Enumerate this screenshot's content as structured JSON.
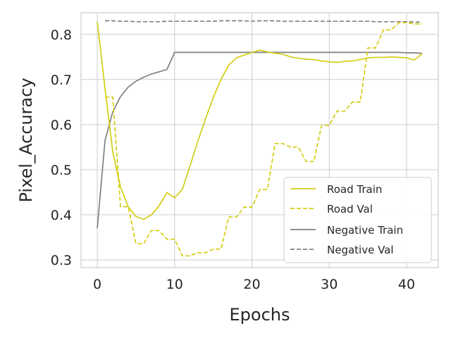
{
  "chart_data": {
    "type": "line",
    "xlabel": "Epochs",
    "ylabel": "Pixel_Accuracy",
    "xlim": [
      -2.1,
      44.1
    ],
    "ylim": [
      0.283,
      0.848
    ],
    "xticks": [
      0,
      10,
      20,
      30,
      40
    ],
    "yticks": [
      0.3,
      0.4,
      0.5,
      0.6,
      0.7,
      0.8
    ],
    "ytick_labels": [
      "0.3",
      "0.4",
      "0.5",
      "0.6",
      "0.7",
      "0.8"
    ],
    "grid": true,
    "legend_position": "lower-right",
    "series": [
      {
        "name": "Road Train",
        "color": "#d4cd14",
        "style": "solid",
        "x": [
          0,
          1,
          2,
          3,
          4,
          5,
          6,
          7,
          8,
          9,
          10,
          11,
          12,
          13,
          14,
          15,
          16,
          17,
          18,
          19,
          20,
          21,
          22,
          23,
          24,
          25,
          26,
          27,
          28,
          29,
          30,
          31,
          32,
          33,
          34,
          35,
          36,
          37,
          38,
          39,
          40,
          41,
          42
        ],
        "y": [
          0.828,
          0.68,
          0.54,
          0.462,
          0.418,
          0.396,
          0.39,
          0.4,
          0.42,
          0.449,
          0.438,
          0.456,
          0.509,
          0.563,
          0.613,
          0.66,
          0.7,
          0.732,
          0.748,
          0.754,
          0.76,
          0.765,
          0.761,
          0.758,
          0.756,
          0.75,
          0.747,
          0.745,
          0.744,
          0.741,
          0.739,
          0.738,
          0.74,
          0.741,
          0.744,
          0.748,
          0.749,
          0.749,
          0.75,
          0.749,
          0.748,
          0.743,
          0.757
        ]
      },
      {
        "name": "Road Val",
        "color": "#d4cd14",
        "style": "dashed",
        "x": [
          1,
          2,
          3,
          4,
          5,
          6,
          7,
          8,
          9,
          10,
          11,
          12,
          13,
          14,
          15,
          16,
          17,
          18,
          19,
          20,
          21,
          22,
          23,
          24,
          25,
          26,
          27,
          28,
          29,
          30,
          31,
          32,
          33,
          34,
          35,
          36,
          37,
          38,
          39,
          40,
          41,
          42
        ],
        "y": [
          0.661,
          0.661,
          0.418,
          0.418,
          0.336,
          0.336,
          0.365,
          0.365,
          0.346,
          0.346,
          0.309,
          0.309,
          0.316,
          0.316,
          0.324,
          0.324,
          0.395,
          0.395,
          0.417,
          0.417,
          0.456,
          0.456,
          0.558,
          0.558,
          0.55,
          0.55,
          0.518,
          0.518,
          0.598,
          0.598,
          0.63,
          0.63,
          0.65,
          0.65,
          0.77,
          0.77,
          0.81,
          0.81,
          0.826,
          0.826,
          0.823,
          0.823
        ]
      },
      {
        "name": "Negative Train",
        "color": "#808080",
        "style": "solid",
        "x": [
          0,
          1,
          2,
          3,
          4,
          5,
          6,
          7,
          8,
          9,
          10,
          11,
          12,
          13,
          14,
          15,
          16,
          17,
          18,
          19,
          20,
          21,
          22,
          23,
          24,
          25,
          26,
          27,
          28,
          29,
          30,
          31,
          32,
          33,
          34,
          35,
          36,
          37,
          38,
          39,
          40,
          41,
          42
        ],
        "y": [
          0.37,
          0.565,
          0.628,
          0.662,
          0.683,
          0.696,
          0.705,
          0.712,
          0.717,
          0.722,
          0.76,
          0.76,
          0.76,
          0.76,
          0.76,
          0.76,
          0.76,
          0.76,
          0.76,
          0.76,
          0.76,
          0.76,
          0.76,
          0.76,
          0.76,
          0.76,
          0.76,
          0.76,
          0.76,
          0.76,
          0.76,
          0.76,
          0.76,
          0.76,
          0.76,
          0.76,
          0.76,
          0.76,
          0.76,
          0.76,
          0.759,
          0.759,
          0.758
        ]
      },
      {
        "name": "Negative Val",
        "color": "#808080",
        "style": "dashed",
        "x": [
          1,
          2,
          3,
          4,
          5,
          6,
          7,
          8,
          9,
          10,
          11,
          12,
          13,
          14,
          15,
          16,
          17,
          18,
          19,
          20,
          21,
          22,
          23,
          24,
          25,
          26,
          27,
          28,
          29,
          30,
          31,
          32,
          33,
          34,
          35,
          36,
          37,
          38,
          39,
          40,
          41,
          42
        ],
        "y": [
          0.83,
          0.83,
          0.829,
          0.829,
          0.828,
          0.828,
          0.828,
          0.828,
          0.829,
          0.829,
          0.829,
          0.829,
          0.829,
          0.829,
          0.829,
          0.83,
          0.83,
          0.83,
          0.83,
          0.829,
          0.83,
          0.83,
          0.83,
          0.829,
          0.829,
          0.829,
          0.829,
          0.829,
          0.829,
          0.829,
          0.829,
          0.829,
          0.829,
          0.829,
          0.829,
          0.828,
          0.828,
          0.828,
          0.828,
          0.828,
          0.827,
          0.827
        ]
      }
    ]
  }
}
